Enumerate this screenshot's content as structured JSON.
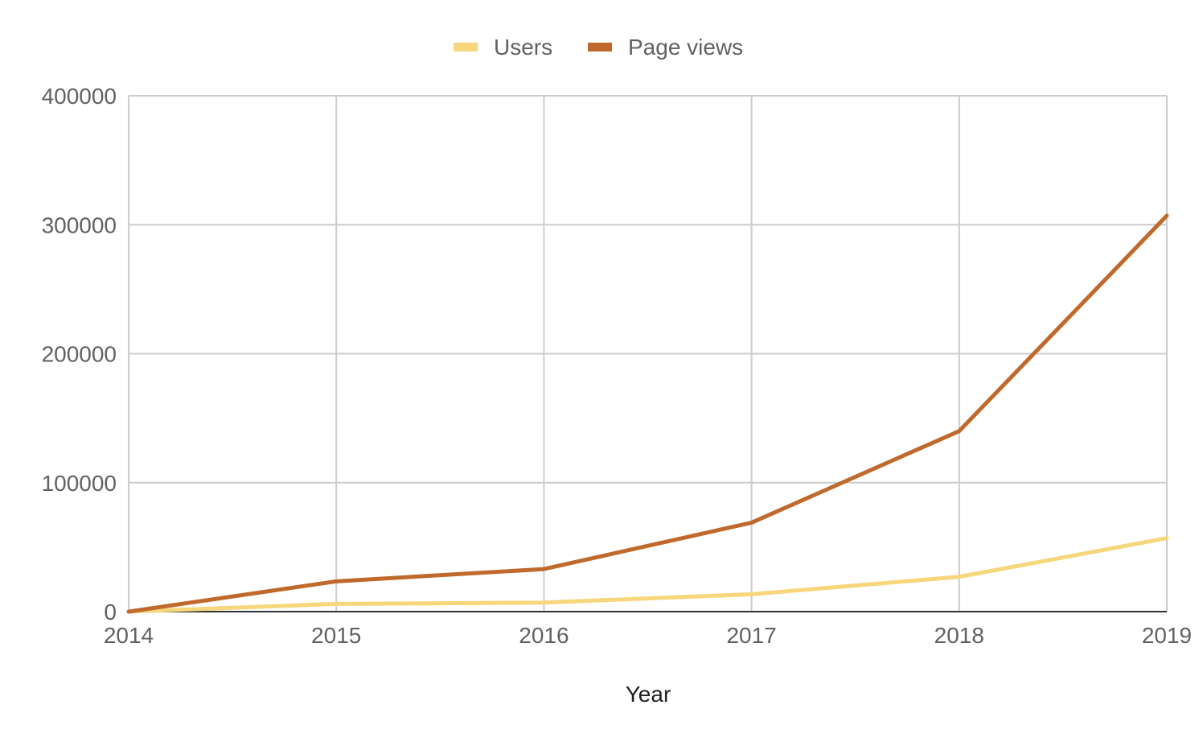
{
  "chart_data": {
    "type": "line",
    "title": "",
    "xlabel": "Year",
    "ylabel": "",
    "x": [
      "2014",
      "2015",
      "2016",
      "2017",
      "2018",
      "2019"
    ],
    "series": [
      {
        "name": "Users",
        "values": [
          0,
          6000,
          7000,
          13500,
          27000,
          57000
        ],
        "color": "#f6d77c"
      },
      {
        "name": "Page views",
        "values": [
          0,
          23500,
          33000,
          69000,
          140000,
          307000
        ],
        "color": "#bf6a2c"
      }
    ],
    "ylim": [
      0,
      400000
    ],
    "yticks": [
      "0",
      "100000",
      "200000",
      "300000",
      "400000"
    ],
    "grid": true,
    "legend_position": "top-center"
  }
}
